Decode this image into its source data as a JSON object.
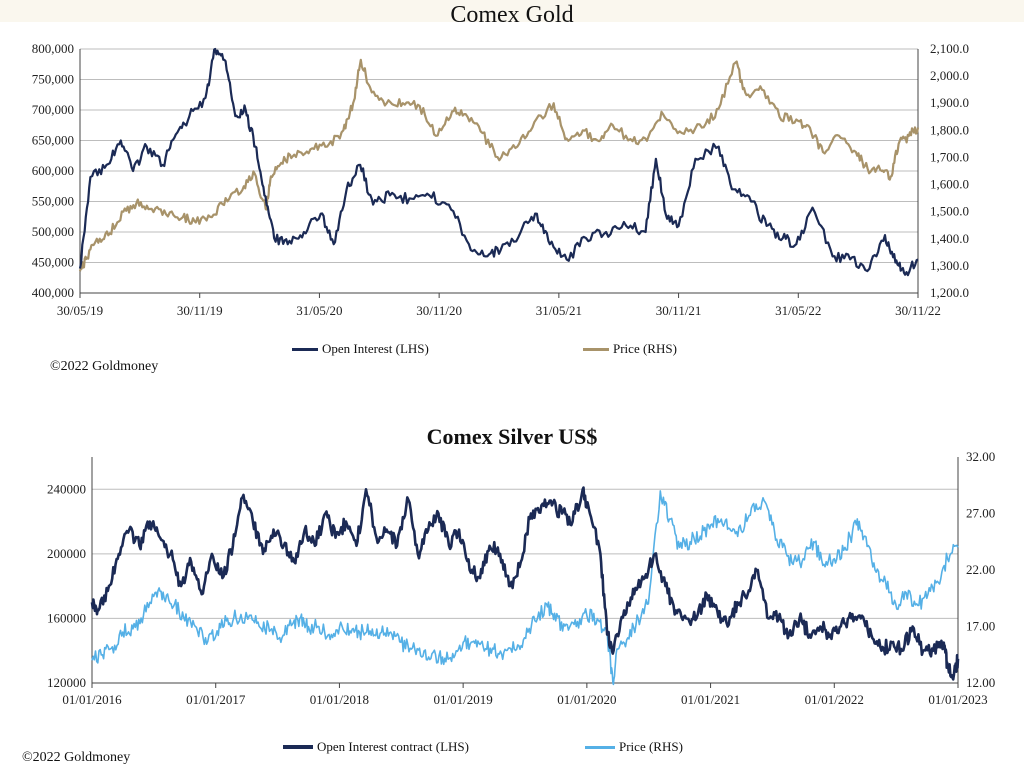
{
  "colors": {
    "gold_oi": "#1b2a55",
    "gold_price": "#a8936a",
    "silver_oi": "#1b2a55",
    "silver_price": "#55b0e6",
    "grid": "#bdbdbd"
  },
  "gold": {
    "copyright": "©2022 Goldmoney",
    "chart_data": {
      "type": "line",
      "title": "Comex Gold",
      "x_ticks": [
        "30/05/19",
        "30/11/19",
        "31/05/20",
        "30/11/20",
        "31/05/21",
        "30/11/21",
        "31/05/22",
        "30/11/22"
      ],
      "y_left": {
        "min": 400000,
        "max": 800000,
        "ticks": [
          "400,000",
          "450,000",
          "500,000",
          "550,000",
          "600,000",
          "650,000",
          "700,000",
          "750,000",
          "800,000"
        ]
      },
      "y_right": {
        "min": 1200,
        "max": 2100,
        "ticks": [
          "1,200.0",
          "1,300.0",
          "1,400.0",
          "1,500.0",
          "1,600.0",
          "1,700.0",
          "1,800.0",
          "1,900.0",
          "2,000.0",
          "2,100.0"
        ]
      },
      "grid": true,
      "legend_position": "bottom",
      "series": [
        {
          "name": "Open Interest (LHS)",
          "axis": "left",
          "x": [
            "2019-05-30",
            "2019-06-15",
            "2019-07-10",
            "2019-08-01",
            "2019-08-20",
            "2019-09-10",
            "2019-10-05",
            "2019-10-25",
            "2019-11-15",
            "2019-12-10",
            "2019-12-25",
            "2020-01-10",
            "2020-01-25",
            "2020-02-10",
            "2020-02-25",
            "2020-03-10",
            "2020-03-25",
            "2020-04-15",
            "2020-05-10",
            "2020-06-05",
            "2020-06-25",
            "2020-07-15",
            "2020-08-05",
            "2020-08-25",
            "2020-09-20",
            "2020-10-20",
            "2020-11-20",
            "2020-12-20",
            "2021-01-20",
            "2021-02-15",
            "2021-03-10",
            "2021-04-10",
            "2021-05-05",
            "2021-05-25",
            "2021-06-20",
            "2021-07-20",
            "2021-08-20",
            "2021-09-20",
            "2021-10-20",
            "2021-11-05",
            "2021-11-20",
            "2021-12-10",
            "2022-01-05",
            "2022-02-10",
            "2022-03-05",
            "2022-04-01",
            "2022-04-25",
            "2022-05-20",
            "2022-06-10",
            "2022-07-05",
            "2022-08-05",
            "2022-09-01",
            "2022-10-01",
            "2022-10-25",
            "2022-11-10",
            "2022-11-25",
            "2022-12-15"
          ],
          "values": [
            440000,
            590000,
            610000,
            650000,
            600000,
            640000,
            610000,
            660000,
            690000,
            720000,
            800000,
            780000,
            690000,
            700000,
            640000,
            560000,
            490000,
            480000,
            500000,
            530000,
            480000,
            570000,
            610000,
            545000,
            560000,
            555000,
            560000,
            545000,
            480000,
            460000,
            470000,
            500000,
            530000,
            480000,
            455000,
            490000,
            500000,
            510000,
            500000,
            620000,
            530000,
            510000,
            620000,
            640000,
            570000,
            550000,
            510000,
            490000,
            480000,
            540000,
            460000,
            455000,
            440000,
            495000,
            450000,
            430000,
            455000
          ]
        },
        {
          "name": "Price (RHS)",
          "axis": "right",
          "x": [
            "2019-05-30",
            "2019-06-10",
            "2019-06-25",
            "2019-07-15",
            "2019-08-05",
            "2019-08-25",
            "2019-09-15",
            "2019-10-10",
            "2019-11-05",
            "2019-11-25",
            "2019-12-20",
            "2020-01-10",
            "2020-02-05",
            "2020-02-24",
            "2020-03-12",
            "2020-03-20",
            "2020-04-05",
            "2020-04-25",
            "2020-05-20",
            "2020-06-15",
            "2020-07-10",
            "2020-07-25",
            "2020-08-06",
            "2020-08-20",
            "2020-09-15",
            "2020-10-10",
            "2020-11-05",
            "2020-11-30",
            "2020-12-25",
            "2021-01-15",
            "2021-02-10",
            "2021-03-08",
            "2021-04-05",
            "2021-05-01",
            "2021-05-31",
            "2021-06-20",
            "2021-07-15",
            "2021-08-09",
            "2021-08-30",
            "2021-09-30",
            "2021-10-25",
            "2021-11-16",
            "2021-12-15",
            "2022-01-15",
            "2022-02-10",
            "2022-03-08",
            "2022-03-25",
            "2022-04-18",
            "2022-05-15",
            "2022-06-10",
            "2022-07-01",
            "2022-07-21",
            "2022-08-15",
            "2022-09-10",
            "2022-09-28",
            "2022-10-20",
            "2022-11-03",
            "2022-11-15",
            "2022-12-01",
            "2022-12-15"
          ],
          "values": [
            1280,
            1330,
            1400,
            1420,
            1500,
            1530,
            1510,
            1490,
            1480,
            1460,
            1480,
            1550,
            1580,
            1640,
            1510,
            1630,
            1680,
            1710,
            1730,
            1740,
            1800,
            1900,
            2060,
            1960,
            1900,
            1900,
            1890,
            1780,
            1870,
            1860,
            1790,
            1690,
            1740,
            1830,
            1900,
            1770,
            1800,
            1760,
            1820,
            1760,
            1780,
            1860,
            1790,
            1810,
            1880,
            2050,
            1930,
            1950,
            1850,
            1840,
            1810,
            1720,
            1780,
            1720,
            1660,
            1650,
            1630,
            1750,
            1780,
            1810
          ]
        }
      ]
    }
  },
  "silver": {
    "copyright": "©2022 Goldmoney",
    "chart_data": {
      "type": "line",
      "title": "Comex Silver US$",
      "x_ticks": [
        "01/01/2016",
        "01/01/2017",
        "01/01/2018",
        "01/01/2019",
        "01/01/2020",
        "01/01/2021",
        "01/01/2022",
        "01/01/2023"
      ],
      "y_left": {
        "min": 120000,
        "max": 260000,
        "ticks": [
          "120000",
          "160000",
          "200000",
          "240000"
        ]
      },
      "y_right": {
        "min": 12,
        "max": 32,
        "ticks": [
          "12.00",
          "17.00",
          "22.00",
          "27.00",
          "32.00"
        ]
      },
      "grid": true,
      "legend_position": "bottom",
      "series": [
        {
          "name": "Open Interest contract (LHS)",
          "axis": "left",
          "x": [
            "2016-01-01",
            "2016-01-20",
            "2016-02-20",
            "2016-03-20",
            "2016-04-20",
            "2016-05-20",
            "2016-06-20",
            "2016-07-20",
            "2016-08-20",
            "2016-09-20",
            "2016-10-20",
            "2016-11-20",
            "2016-12-20",
            "2017-01-20",
            "2017-02-20",
            "2017-03-20",
            "2017-04-20",
            "2017-05-20",
            "2017-06-20",
            "2017-07-20",
            "2017-08-20",
            "2017-09-20",
            "2017-10-20",
            "2017-11-20",
            "2017-12-20",
            "2018-01-20",
            "2018-02-20",
            "2018-03-20",
            "2018-04-20",
            "2018-05-20",
            "2018-06-20",
            "2018-07-20",
            "2018-08-20",
            "2018-09-20",
            "2018-10-20",
            "2018-11-20",
            "2018-12-20",
            "2019-01-20",
            "2019-02-20",
            "2019-03-20",
            "2019-04-20",
            "2019-05-20",
            "2019-06-20",
            "2019-07-20",
            "2019-08-20",
            "2019-09-20",
            "2019-10-20",
            "2019-11-20",
            "2019-12-20",
            "2020-01-10",
            "2020-02-10",
            "2020-03-01",
            "2020-03-20",
            "2020-04-20",
            "2020-05-20",
            "2020-06-20",
            "2020-07-20",
            "2020-08-20",
            "2020-09-20",
            "2020-10-20",
            "2020-11-20",
            "2020-12-20",
            "2021-01-20",
            "2021-02-20",
            "2021-03-20",
            "2021-04-20",
            "2021-05-20",
            "2021-06-20",
            "2021-07-20",
            "2021-08-20",
            "2021-09-20",
            "2021-10-20",
            "2021-11-20",
            "2021-12-20",
            "2022-01-20",
            "2022-02-20",
            "2022-03-20",
            "2022-04-20",
            "2022-05-20",
            "2022-06-20",
            "2022-07-20",
            "2022-08-20",
            "2022-09-20",
            "2022-10-20",
            "2022-11-20",
            "2022-12-01",
            "2022-12-20",
            "2023-01-01"
          ],
          "values": [
            170000,
            165000,
            180000,
            200000,
            215000,
            205000,
            220000,
            210000,
            200000,
            180000,
            195000,
            175000,
            200000,
            185000,
            205000,
            235000,
            220000,
            200000,
            215000,
            205000,
            195000,
            215000,
            205000,
            225000,
            210000,
            220000,
            205000,
            240000,
            210000,
            215000,
            205000,
            235000,
            200000,
            215000,
            225000,
            205000,
            215000,
            190000,
            185000,
            205000,
            200000,
            180000,
            195000,
            225000,
            230000,
            230000,
            225000,
            220000,
            240000,
            225000,
            200000,
            150000,
            140000,
            165000,
            175000,
            185000,
            200000,
            180000,
            165000,
            160000,
            160000,
            175000,
            165000,
            155000,
            170000,
            175000,
            190000,
            160000,
            160000,
            150000,
            160000,
            150000,
            155000,
            150000,
            155000,
            160000,
            160000,
            150000,
            140000,
            145000,
            140000,
            155000,
            140000,
            140000,
            145000,
            130000,
            125000,
            135000
          ]
        },
        {
          "name": "Price (RHS)",
          "axis": "right",
          "x": [
            "2016-01-01",
            "2016-02-01",
            "2016-03-01",
            "2016-04-01",
            "2016-05-01",
            "2016-06-01",
            "2016-07-05",
            "2016-08-01",
            "2016-09-01",
            "2016-10-01",
            "2016-11-01",
            "2016-12-01",
            "2017-01-01",
            "2017-02-01",
            "2017-03-01",
            "2017-04-15",
            "2017-05-15",
            "2017-06-15",
            "2017-07-15",
            "2017-08-15",
            "2017-09-08",
            "2017-10-01",
            "2017-11-01",
            "2017-12-01",
            "2018-01-01",
            "2018-02-01",
            "2018-03-01",
            "2018-04-01",
            "2018-05-01",
            "2018-06-01",
            "2018-07-01",
            "2018-08-01",
            "2018-09-01",
            "2018-10-01",
            "2018-11-01",
            "2018-12-01",
            "2019-01-01",
            "2019-02-01",
            "2019-03-01",
            "2019-04-01",
            "2019-05-01",
            "2019-06-01",
            "2019-07-01",
            "2019-08-01",
            "2019-09-04",
            "2019-10-01",
            "2019-11-01",
            "2019-12-01",
            "2020-01-01",
            "2020-02-01",
            "2020-03-01",
            "2020-03-18",
            "2020-04-01",
            "2020-05-01",
            "2020-06-01",
            "2020-07-01",
            "2020-08-05",
            "2020-09-01",
            "2020-10-01",
            "2020-11-01",
            "2020-12-01",
            "2021-01-01",
            "2021-02-01",
            "2021-03-01",
            "2021-04-01",
            "2021-05-01",
            "2021-06-01",
            "2021-07-01",
            "2021-08-01",
            "2021-09-01",
            "2021-10-01",
            "2021-11-01",
            "2021-12-01",
            "2022-01-01",
            "2022-02-01",
            "2022-03-07",
            "2022-04-01",
            "2022-05-01",
            "2022-06-01",
            "2022-07-01",
            "2022-08-01",
            "2022-09-01",
            "2022-10-01",
            "2022-11-01",
            "2022-12-01",
            "2023-01-01"
          ],
          "values": [
            14.0,
            14.5,
            15.2,
            16.5,
            16.8,
            18.0,
            20.0,
            19.5,
            19.0,
            17.5,
            17.0,
            16.0,
            16.2,
            17.5,
            17.8,
            18.0,
            16.8,
            16.8,
            16.0,
            17.2,
            17.8,
            17.0,
            17.0,
            16.3,
            17.0,
            16.6,
            16.5,
            16.6,
            16.4,
            16.5,
            15.6,
            15.0,
            14.3,
            14.6,
            14.3,
            14.6,
            15.6,
            15.7,
            15.2,
            15.0,
            14.7,
            15.0,
            16.0,
            17.5,
            19.0,
            17.5,
            17.2,
            17.0,
            18.0,
            17.7,
            16.5,
            12.0,
            15.0,
            16.0,
            17.7,
            19.0,
            29.0,
            26.5,
            24.0,
            24.5,
            25.0,
            26.0,
            26.5,
            25.5,
            25.5,
            27.5,
            28.0,
            26.0,
            24.0,
            22.5,
            23.0,
            24.5,
            22.5,
            23.0,
            24.0,
            26.0,
            25.0,
            22.0,
            21.0,
            19.0,
            20.0,
            19.0,
            19.5,
            21.0,
            23.0,
            24.0
          ]
        }
      ]
    }
  }
}
